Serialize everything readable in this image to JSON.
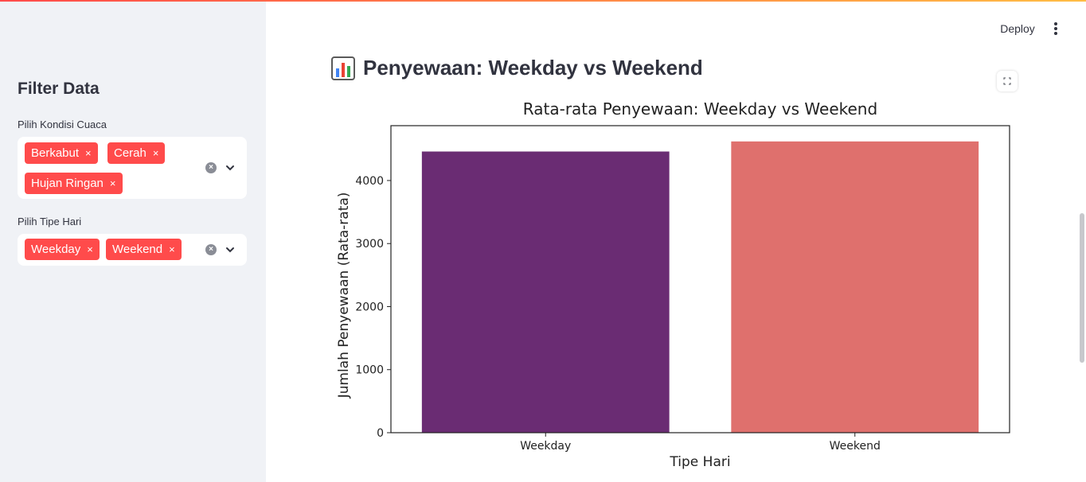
{
  "sidebar": {
    "title": "Filter Data",
    "weather_filter": {
      "label": "Pilih Kondisi Cuaca",
      "chips": [
        "Berkabut",
        "Cerah",
        "Hujan Ringan"
      ]
    },
    "day_filter": {
      "label": "Pilih Tipe Hari",
      "chips": [
        "Weekday",
        "Weekend"
      ]
    },
    "chip_close_glyph": "×",
    "clear_glyph": "×"
  },
  "toolbar": {
    "deploy_label": "Deploy",
    "menu_icon": "kebab-menu-icon"
  },
  "main": {
    "header_icon": "bar-chart-emoji-icon",
    "header_title": "Penyewaan: Weekday vs Weekend"
  },
  "colors": {
    "accent": "#ff4b4b",
    "sidebar_bg": "#f0f2f6",
    "weekday_bar": "#6a2c73",
    "weekend_bar": "#df706d"
  },
  "chart_data": {
    "type": "bar",
    "title": "Rata-rata Penyewaan: Weekday vs Weekend",
    "xlabel": "Tipe Hari",
    "ylabel": "Jumlah Penyewaan (Rata-rata)",
    "categories": [
      "Weekday",
      "Weekend"
    ],
    "values": [
      4460,
      4620
    ],
    "ylim": [
      0,
      4870
    ],
    "yticks": [
      0,
      1000,
      2000,
      3000,
      4000
    ],
    "bar_colors": [
      "#6a2c73",
      "#df706d"
    ],
    "grid": false,
    "legend": "none"
  }
}
